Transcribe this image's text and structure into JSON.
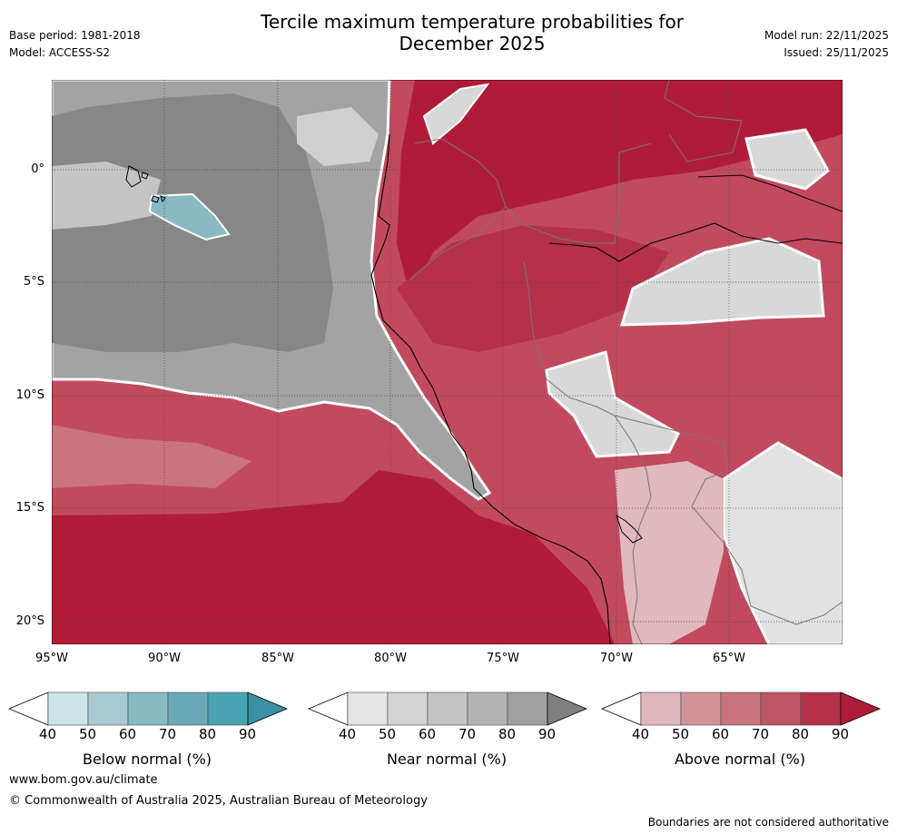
{
  "header": {
    "title_line1": "Tercile maximum temperature probabilities for",
    "title_line2": "December 2025",
    "base_period": "Base period: 1981-2018",
    "model": "Model: ACCESS-S2",
    "model_run": "Model run: 22/11/2025",
    "issued": "Issued: 25/11/2025"
  },
  "map": {
    "lat_labels": [
      "0°",
      "5°S",
      "10°S",
      "15°S",
      "20°S"
    ],
    "lon_labels": [
      "95°W",
      "90°W",
      "85°W",
      "80°W",
      "75°W",
      "70°W",
      "65°W"
    ],
    "lat_range": [
      4,
      -21
    ],
    "lon_range": [
      -95,
      -60
    ]
  },
  "legend": {
    "below": {
      "label": "Below normal (%)",
      "ticks": [
        "40",
        "50",
        "60",
        "70",
        "80",
        "90"
      ],
      "colors": [
        "#ffffff",
        "#cbe4e8",
        "#a8cbd1",
        "#89b9c3",
        "#6aaab6",
        "#4aa3b2",
        "#3a8fa3"
      ]
    },
    "near": {
      "label": "Near normal (%)",
      "ticks": [
        "40",
        "50",
        "60",
        "70",
        "80",
        "90"
      ],
      "colors": [
        "#ffffff",
        "#e5e5e5",
        "#d4d4d4",
        "#c4c4c4",
        "#b3b3b3",
        "#a0a0a0",
        "#808080"
      ]
    },
    "above": {
      "label": "Above normal (%)",
      "ticks": [
        "40",
        "50",
        "60",
        "70",
        "80",
        "90"
      ],
      "colors": [
        "#ffffff",
        "#e0b8bd",
        "#d4939b",
        "#c97480",
        "#bd5566",
        "#b43149",
        "#b01c38"
      ]
    }
  },
  "footer": {
    "website": "www.bom.gov.au/climate",
    "copyright": "© Commonwealth of Australia 2025, Australian Bureau of Meteorology",
    "disclaimer": "Boundaries are not considered authoritative"
  }
}
